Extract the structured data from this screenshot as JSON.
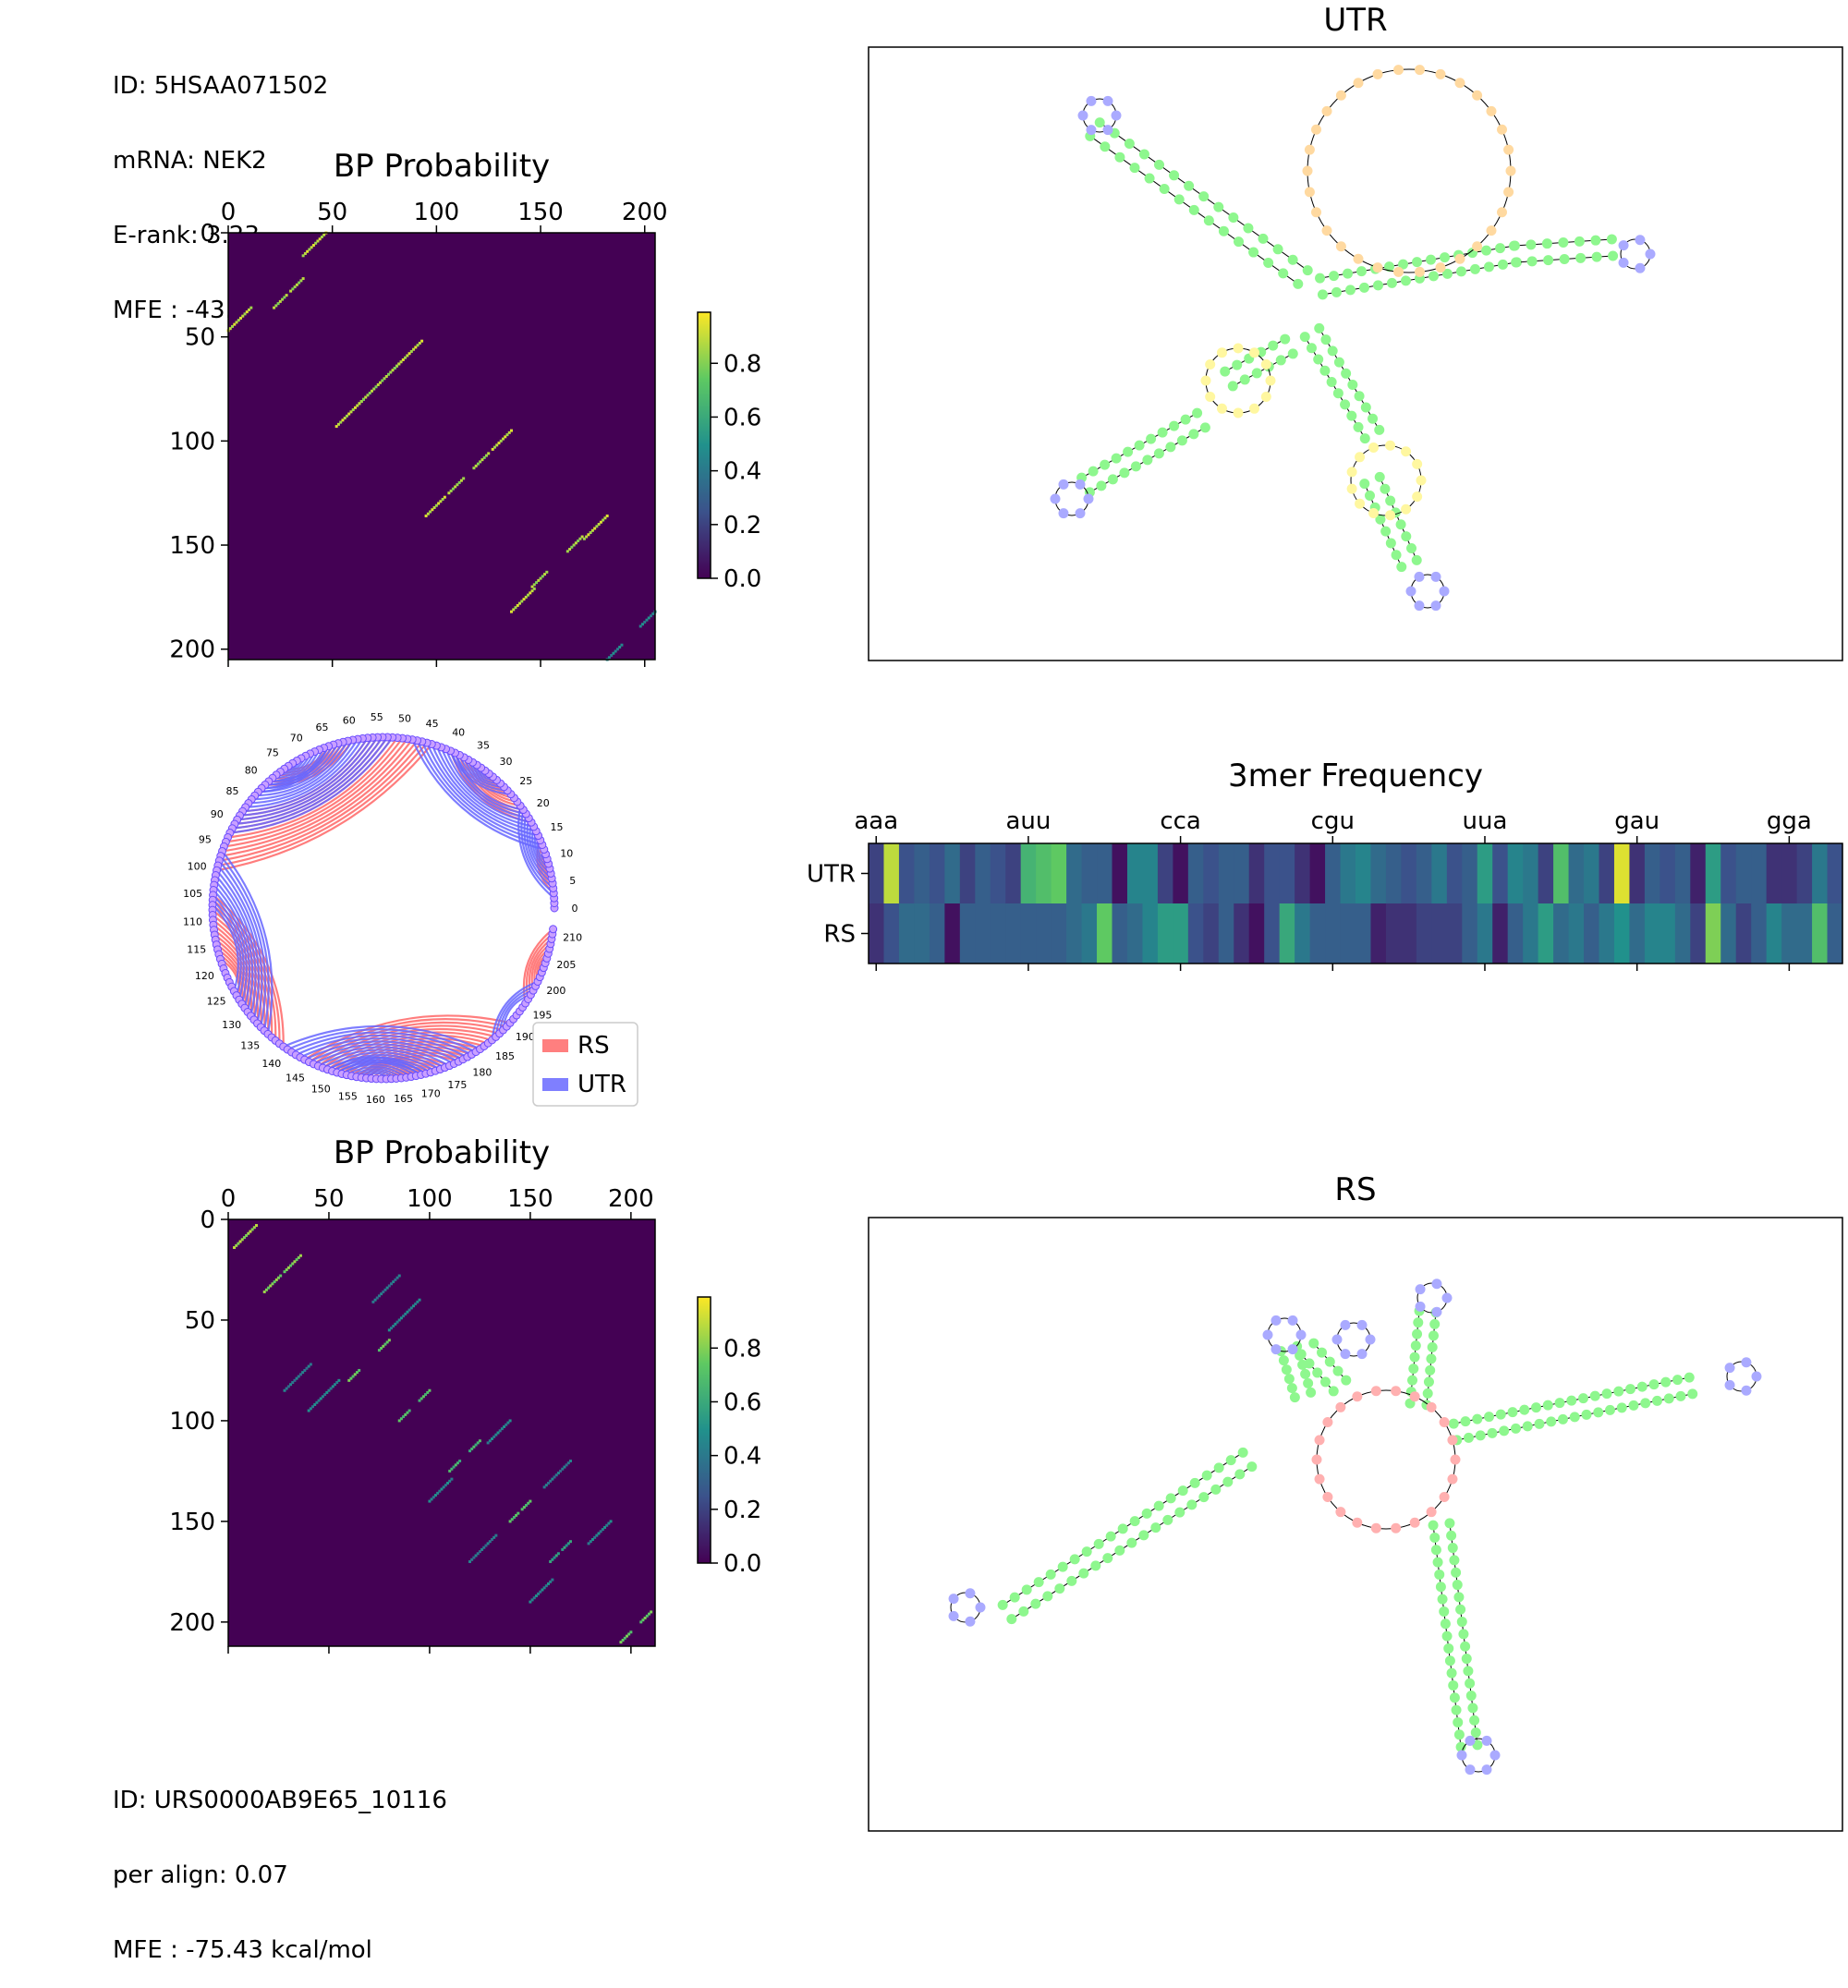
{
  "top_info": {
    "id": "ID: 5HSAA071502",
    "mrna": "mRNA: NEK2",
    "erank": "E-rank: 3.23",
    "mfe": "MFE : -43.24 kcal/mol"
  },
  "bottom_info": {
    "id": "ID: URS0000AB9E65_10116",
    "align": "per align: 0.07",
    "mfe": "MFE : -75.43 kcal/mol"
  },
  "colors": {
    "rs": "#ff7f7f",
    "utr": "#7f7fff",
    "heat_bg": "#440154",
    "axis": "#000000"
  },
  "chart_data": [
    {
      "type": "heatmap",
      "title": "BP Probability",
      "x_ticks": [
        0,
        50,
        100,
        150,
        200
      ],
      "y_ticks": [
        0,
        50,
        100,
        150,
        200
      ],
      "xlim": [
        0,
        205
      ],
      "ylim": [
        205,
        0
      ],
      "colorbar": {
        "ticks": [
          "0.0",
          "0.2",
          "0.4",
          "0.6",
          "0.8"
        ],
        "range": [
          0,
          1
        ]
      },
      "helices": [
        [
          0,
          47,
          12,
          0.95
        ],
        [
          22,
          36,
          12,
          0.9
        ],
        [
          52,
          93,
          14,
          0.95
        ],
        [
          63,
          82,
          10,
          0.9
        ],
        [
          95,
          136,
          10,
          0.95
        ],
        [
          106,
          125,
          8,
          0.9
        ],
        [
          136,
          182,
          12,
          0.95
        ],
        [
          146,
          170,
          8,
          0.9
        ],
        [
          182,
          205,
          8,
          0.5
        ]
      ]
    },
    {
      "type": "heatmap",
      "title": "BP Probability",
      "x_ticks": [
        0,
        50,
        100,
        150,
        200
      ],
      "y_ticks": [
        0,
        50,
        100,
        150,
        200
      ],
      "xlim": [
        0,
        212
      ],
      "ylim": [
        212,
        0
      ],
      "colorbar": {
        "ticks": [
          "0.0",
          "0.2",
          "0.4",
          "0.6",
          "0.8"
        ],
        "range": [
          0,
          1
        ]
      },
      "helices": [
        [
          3,
          14,
          6,
          0.9
        ],
        [
          18,
          36,
          10,
          0.85
        ],
        [
          28,
          85,
          14,
          0.45
        ],
        [
          40,
          95,
          16,
          0.5
        ],
        [
          60,
          80,
          6,
          0.8
        ],
        [
          85,
          100,
          6,
          0.75
        ],
        [
          100,
          140,
          12,
          0.5
        ],
        [
          110,
          125,
          6,
          0.7
        ],
        [
          120,
          170,
          14,
          0.45
        ],
        [
          140,
          150,
          6,
          0.75
        ],
        [
          150,
          190,
          12,
          0.5
        ],
        [
          160,
          170,
          5,
          0.6
        ],
        [
          195,
          210,
          6,
          0.8
        ]
      ]
    },
    {
      "type": "heatmap",
      "title": "3mer Frequency",
      "x_tick_labels": [
        "aaa",
        "auu",
        "cca",
        "cgu",
        "uua",
        "gau",
        "gga"
      ],
      "x_tick_positions": [
        0,
        10,
        20,
        30,
        40,
        50,
        60
      ],
      "rows": [
        "UTR",
        "RS"
      ],
      "n_cols": 64,
      "values": [
        [
          0.2,
          0.9,
          0.25,
          0.3,
          0.25,
          0.35,
          0.2,
          0.3,
          0.25,
          0.2,
          0.65,
          0.7,
          0.75,
          0.35,
          0.3,
          0.3,
          0.05,
          0.45,
          0.45,
          0.2,
          0.05,
          0.3,
          0.25,
          0.3,
          0.3,
          0.15,
          0.25,
          0.25,
          0.15,
          0.05,
          0.3,
          0.4,
          0.45,
          0.35,
          0.3,
          0.25,
          0.3,
          0.4,
          0.25,
          0.3,
          0.55,
          0.25,
          0.45,
          0.4,
          0.2,
          0.7,
          0.35,
          0.4,
          0.2,
          0.95,
          0.15,
          0.3,
          0.25,
          0.3,
          0.1,
          0.55,
          0.25,
          0.3,
          0.3,
          0.15,
          0.15,
          0.2,
          0.4,
          0.25
        ],
        [
          0.15,
          0.25,
          0.35,
          0.35,
          0.3,
          0.05,
          0.3,
          0.3,
          0.3,
          0.3,
          0.3,
          0.3,
          0.3,
          0.35,
          0.4,
          0.75,
          0.3,
          0.35,
          0.45,
          0.55,
          0.55,
          0.25,
          0.2,
          0.3,
          0.15,
          0.05,
          0.25,
          0.6,
          0.4,
          0.3,
          0.3,
          0.3,
          0.3,
          0.1,
          0.15,
          0.15,
          0.2,
          0.2,
          0.2,
          0.3,
          0.4,
          0.1,
          0.3,
          0.4,
          0.55,
          0.35,
          0.4,
          0.3,
          0.4,
          0.5,
          0.35,
          0.45,
          0.45,
          0.35,
          0.2,
          0.8,
          0.35,
          0.2,
          0.3,
          0.45,
          0.35,
          0.35,
          0.7,
          0.3
        ]
      ]
    },
    {
      "type": "arc",
      "legend": [
        "RS",
        "UTR"
      ],
      "tick_labels": [
        "0",
        "5",
        "10",
        "15",
        "20",
        "25",
        "30",
        "35",
        "40",
        "45",
        "50",
        "55",
        "60",
        "65",
        "70",
        "75",
        "80",
        "85",
        "90",
        "95",
        "100",
        "105",
        "110",
        "115",
        "120",
        "125",
        "130",
        "135",
        "140",
        "145",
        "150",
        "155",
        "160",
        "165",
        "170",
        "175",
        "180",
        "185",
        "190",
        "195",
        "200",
        "205",
        "210"
      ],
      "n": 212,
      "utr_arcs": [
        [
          2,
          22,
          8
        ],
        [
          12,
          48,
          10
        ],
        [
          25,
          40,
          8
        ],
        [
          52,
          92,
          14
        ],
        [
          65,
          82,
          10
        ],
        [
          96,
          136,
          12
        ],
        [
          140,
          182,
          14
        ],
        [
          150,
          170,
          8
        ],
        [
          185,
          200,
          4
        ]
      ],
      "rs_arcs": [
        [
          3,
          14,
          6
        ],
        [
          18,
          40,
          10
        ],
        [
          44,
          100,
          14
        ],
        [
          60,
          80,
          6
        ],
        [
          105,
          140,
          14
        ],
        [
          145,
          190,
          14
        ],
        [
          156,
          175,
          8
        ],
        [
          195,
          211,
          8
        ]
      ]
    }
  ],
  "structures": [
    {
      "title": "UTR"
    },
    {
      "title": "RS"
    }
  ]
}
